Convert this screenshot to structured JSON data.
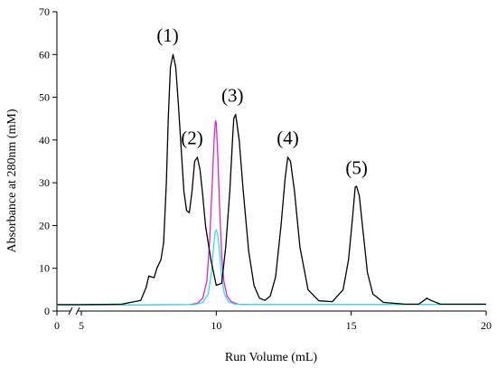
{
  "chart_data": {
    "type": "line",
    "title": "",
    "xlabel": "Run Volume (mL)",
    "ylabel": "Absorbance at 280nm (mM)",
    "xlim": [
      0,
      20
    ],
    "ylim": [
      0,
      70
    ],
    "x_axis_break": [
      0.5,
      5
    ],
    "x_ticks": [
      0,
      5,
      10,
      15,
      20
    ],
    "y_ticks": [
      0,
      10,
      20,
      30,
      40,
      50,
      60,
      70
    ],
    "grid": false,
    "legend": "none",
    "series": [
      {
        "color": "#000000",
        "x": [
          0,
          5,
          6.5,
          7.2,
          7.4,
          7.5,
          7.6,
          7.7,
          7.8,
          7.95,
          8.05,
          8.15,
          8.22,
          8.3,
          8.4,
          8.5,
          8.6,
          8.7,
          8.8,
          8.9,
          9.0,
          9.1,
          9.2,
          9.3,
          9.4,
          9.5,
          9.6,
          9.8,
          10.0,
          10.2,
          10.35,
          10.5,
          10.6,
          10.65,
          10.72,
          10.85,
          11.0,
          11.2,
          11.4,
          11.6,
          11.8,
          12.0,
          12.2,
          12.4,
          12.55,
          12.65,
          12.75,
          12.9,
          13.1,
          13.4,
          13.8,
          14.3,
          14.7,
          14.9,
          15.05,
          15.15,
          15.2,
          15.3,
          15.45,
          15.6,
          15.8,
          16.2,
          17.0,
          17.5,
          17.7,
          17.8,
          17.95,
          18.3,
          20
        ],
        "values": [
          1.5,
          1.5,
          1.6,
          2.5,
          5.5,
          8.2,
          8.0,
          7.8,
          10,
          12,
          16,
          30,
          45,
          57,
          60,
          57,
          48,
          38,
          28,
          23.5,
          23,
          28,
          35,
          36,
          33,
          27,
          20,
          12,
          6,
          6.5,
          15,
          28,
          40,
          45,
          46,
          40,
          28,
          14,
          6,
          3,
          2.5,
          3.5,
          8,
          20,
          31,
          36,
          35,
          28,
          15,
          5,
          2.4,
          2.2,
          5,
          12,
          22,
          29,
          29.2,
          27,
          18,
          9,
          4,
          2,
          1.6,
          1.6,
          2.5,
          3.0,
          2.5,
          1.6,
          1.6
        ]
      },
      {
        "color": "#e020e0",
        "x": [
          0,
          5,
          9.0,
          9.3,
          9.5,
          9.65,
          9.75,
          9.85,
          9.92,
          9.97,
          10.0,
          10.06,
          10.12,
          10.2,
          10.28,
          10.4,
          10.55,
          10.8,
          11.2,
          20
        ],
        "values": [
          1.4,
          1.4,
          1.5,
          1.8,
          3,
          7,
          16,
          30,
          40,
          44.5,
          44,
          36,
          25,
          13,
          7,
          3.5,
          2.2,
          1.6,
          1.5,
          1.5
        ]
      },
      {
        "color": "#30e0e0",
        "x": [
          0,
          5,
          9.2,
          9.5,
          9.7,
          9.82,
          9.9,
          9.96,
          10.0,
          10.05,
          10.12,
          10.2,
          10.3,
          10.45,
          10.7,
          11.0,
          20
        ],
        "values": [
          1.4,
          1.4,
          1.5,
          2,
          4,
          9,
          15,
          18.5,
          19,
          18,
          14,
          8,
          4,
          2.2,
          1.6,
          1.5,
          1.5
        ]
      }
    ],
    "annotations": [
      {
        "text": "(1)",
        "x": 8.2,
        "y": 63
      },
      {
        "text": "(2)",
        "x": 9.1,
        "y": 39
      },
      {
        "text": "(3)",
        "x": 10.6,
        "y": 49
      },
      {
        "text": "(4)",
        "x": 12.65,
        "y": 39
      },
      {
        "text": "(5)",
        "x": 15.2,
        "y": 32
      }
    ]
  }
}
